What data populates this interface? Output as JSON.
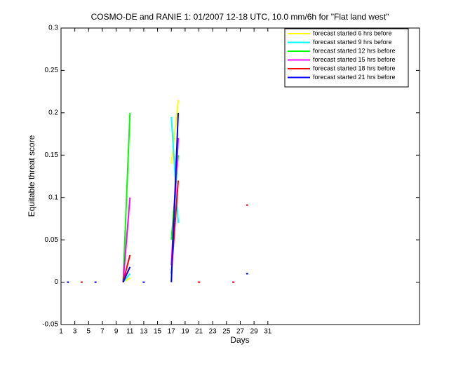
{
  "chart_data": {
    "type": "line",
    "title": "COSMO-DE and RANIE 1: 01/2007 12-18 UTC, 10.0 mm/6h for \"Flat land west\"",
    "xlabel": "Days",
    "ylabel": "Equitable threat score",
    "x": [
      1,
      2,
      3,
      4,
      5,
      6,
      7,
      8,
      9,
      10,
      11,
      12,
      13,
      14,
      15,
      16,
      17,
      18,
      19,
      20,
      21,
      22,
      23,
      24,
      25,
      26,
      27,
      28,
      29,
      30,
      31
    ],
    "xlim": [
      1,
      53
    ],
    "xticks": [
      1,
      3,
      5,
      7,
      9,
      11,
      13,
      15,
      17,
      19,
      21,
      23,
      25,
      27,
      29,
      31
    ],
    "ylim": [
      -0.05,
      0.3
    ],
    "yticks": [
      -0.05,
      0,
      0.05,
      0.1,
      0.15,
      0.2,
      0.25,
      0.3
    ],
    "legend": "northeast",
    "series": [
      {
        "name": "forecast started 6 hrs before",
        "color": "#ffff00",
        "values": [
          null,
          null,
          null,
          null,
          null,
          null,
          null,
          null,
          null,
          0,
          0.005,
          null,
          null,
          null,
          null,
          null,
          0.14,
          0.215,
          null,
          null,
          null,
          null,
          null,
          null,
          null,
          null,
          null,
          null,
          null,
          null,
          null
        ]
      },
      {
        "name": "forecast started 9 hrs before",
        "color": "#00ffff",
        "values": [
          null,
          null,
          null,
          null,
          null,
          null,
          null,
          null,
          null,
          0,
          0.01,
          null,
          null,
          null,
          null,
          null,
          0.195,
          0.07,
          null,
          null,
          null,
          null,
          null,
          null,
          null,
          null,
          null,
          null,
          null,
          null,
          null
        ]
      },
      {
        "name": "forecast started 12 hrs before",
        "color": "#00ff00",
        "values": [
          null,
          null,
          null,
          null,
          null,
          null,
          null,
          null,
          null,
          0,
          0.2,
          null,
          null,
          null,
          null,
          null,
          0.05,
          0.15,
          null,
          null,
          null,
          null,
          null,
          null,
          null,
          null,
          null,
          null,
          null,
          null,
          null
        ]
      },
      {
        "name": "forecast started 15 hrs before",
        "color": "#ff00ff",
        "values": [
          null,
          null,
          null,
          null,
          null,
          null,
          null,
          null,
          null,
          0,
          0.1,
          null,
          null,
          null,
          null,
          null,
          0.02,
          0.17,
          null,
          null,
          null,
          null,
          null,
          null,
          null,
          0,
          null,
          null,
          null,
          null,
          null
        ]
      },
      {
        "name": "forecast started 18 hrs before",
        "color": "#ff0000",
        "values": [
          null,
          null,
          null,
          0,
          null,
          null,
          null,
          null,
          null,
          0,
          0.032,
          null,
          null,
          null,
          null,
          null,
          0.01,
          0.12,
          null,
          null,
          0,
          null,
          null,
          null,
          null,
          0,
          null,
          0.091,
          null,
          null,
          null
        ]
      },
      {
        "name": "forecast started 21 hrs before",
        "color": "#0000ff",
        "values": [
          null,
          0,
          null,
          null,
          null,
          0,
          null,
          null,
          null,
          0,
          0.018,
          null,
          0,
          null,
          null,
          null,
          0,
          0.2,
          null,
          null,
          null,
          null,
          null,
          null,
          null,
          null,
          null,
          0.01,
          null,
          null,
          null
        ]
      }
    ]
  }
}
